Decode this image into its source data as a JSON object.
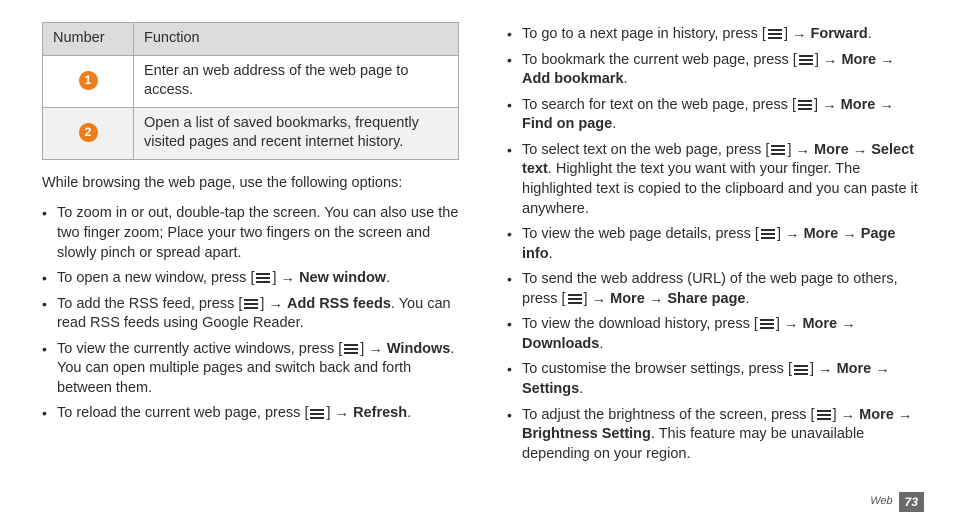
{
  "table": {
    "headers": {
      "number": "Number",
      "function": "Function"
    },
    "rows": [
      {
        "num": "1",
        "func": "Enter an web address of the web page to access."
      },
      {
        "num": "2",
        "func": "Open a list of saved bookmarks, frequently visited pages and recent internet history."
      }
    ]
  },
  "left": {
    "intro": "While browsing the web page, use the following options:",
    "items": [
      {
        "pre": "To zoom in or out, double-tap the screen. You can also use the two finger zoom; Place your two fingers on the screen and slowly pinch or spread apart."
      },
      {
        "pre": "To open a new window, press [",
        "icon": true,
        "mid1": "] → ",
        "b1": "New window",
        "post1": "."
      },
      {
        "pre": "To add the RSS feed, press [",
        "icon": true,
        "mid1": "] → ",
        "b1": "Add RSS feeds",
        "post1": ". You can read RSS feeds using Google Reader."
      },
      {
        "pre": "To view the currently active windows, press [",
        "icon": true,
        "mid1": "] → ",
        "b1": "Windows",
        "post1": ". You can open multiple pages and switch back and forth between them."
      },
      {
        "pre": "To reload the current web page, press [",
        "icon": true,
        "mid1": "] → ",
        "b1": "Refresh",
        "post1": "."
      }
    ]
  },
  "right": {
    "items": [
      {
        "pre": "To go to a next page in history, press [",
        "icon": true,
        "mid1": "] → ",
        "b1": "Forward",
        "post1": "."
      },
      {
        "pre": "To bookmark the current web page, press [",
        "icon": true,
        "mid1": "] → ",
        "b1": "More",
        "post1": " → ",
        "b2": "Add bookmark",
        "post2": "."
      },
      {
        "pre": "To search for text on the web page, press [",
        "icon": true,
        "mid1": "] → ",
        "b1": "More",
        "post1": " → ",
        "b2": "Find on page",
        "post2": "."
      },
      {
        "pre": "To select text on the web page, press [",
        "icon": true,
        "mid1": "] → ",
        "b1": "More",
        "post1": " → ",
        "b2": "Select text",
        "post2": ". Highlight the text you want with your finger. The highlighted text is copied to the clipboard and you can paste it anywhere."
      },
      {
        "pre": "To view the web page details, press [",
        "icon": true,
        "mid1": "] → ",
        "b1": "More",
        "post1": " → ",
        "b2": "Page info",
        "post2": "."
      },
      {
        "pre": "To send the web address (URL) of the web page to others, press [",
        "icon": true,
        "mid1": "] → ",
        "b1": "More",
        "post1": " → ",
        "b2": "Share page",
        "post2": "."
      },
      {
        "pre": "To view the download history, press [",
        "icon": true,
        "mid1": "] → ",
        "b1": "More",
        "post1": " → ",
        "b2": "Downloads",
        "post2": "."
      },
      {
        "pre": "To customise the browser settings, press [",
        "icon": true,
        "mid1": "] → ",
        "b1": "More",
        "post1": " → ",
        "b2": "Settings",
        "post2": "."
      },
      {
        "pre": "To adjust the brightness of the screen, press [",
        "icon": true,
        "mid1": "] → ",
        "b1": "More",
        "post1": " → ",
        "b2": "Brightness Setting",
        "post2": ". This feature may be unavailable depending on your region."
      }
    ]
  },
  "footer": {
    "section": "Web",
    "page": "73"
  }
}
